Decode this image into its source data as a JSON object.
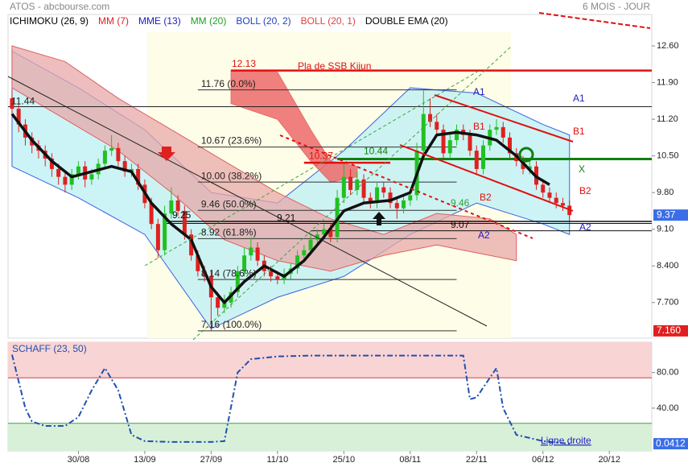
{
  "header": {
    "source": "ATOS - abcbourse.com",
    "period": "6 MOIS - JOUR"
  },
  "legend": [
    {
      "name": "ICHIMOKU (26, 9)",
      "color": "#000000"
    },
    {
      "name": "MM (7)",
      "color": "#e02020"
    },
    {
      "name": "MME (13)",
      "color": "#2020c0"
    },
    {
      "name": "MM (20)",
      "color": "#20a020"
    },
    {
      "name": "BOLL (20, 2)",
      "color": "#2040c0"
    },
    {
      "name": "BOLL (20, 1)",
      "color": "#e04040"
    },
    {
      "name": "DOUBLE EMA (20)",
      "color": "#000000"
    }
  ],
  "chart_data": [
    {
      "type": "candlestick",
      "xlim": [
        -0.6,
        96.4
      ],
      "ylim": [
        7.02,
        13.2
      ],
      "yticks": [
        {
          "value": 12.6,
          "label": "12.60"
        },
        {
          "value": 11.9,
          "label": "11.90"
        },
        {
          "value": 11.2,
          "label": "11.20"
        },
        {
          "value": 10.5,
          "label": "10.50"
        },
        {
          "value": 9.8,
          "label": "9.80"
        },
        {
          "value": 9.1,
          "label": "9.10"
        },
        {
          "value": 8.4,
          "label": "8.400"
        },
        {
          "value": 7.7,
          "label": "7.700"
        }
      ],
      "up_color": "#22c022",
      "down_color": "#e02020",
      "open": [
        11.6,
        11.4,
        11.1,
        10.85,
        10.7,
        10.6,
        10.45,
        10.25,
        10.1,
        9.95,
        10.15,
        10.3,
        10.05,
        10.15,
        10.35,
        10.6,
        10.65,
        10.4,
        10.2,
        10.25,
        9.95,
        9.6,
        9.2,
        8.7,
        9.4,
        9.65,
        9.45,
        9.0,
        8.6,
        8.3,
        8.2,
        7.8,
        7.6,
        7.7,
        7.9,
        8.3,
        8.6,
        8.75,
        8.5,
        8.3,
        8.2,
        8.15,
        8.25,
        8.35,
        8.6,
        8.7,
        8.9,
        9.0,
        9.1,
        8.95,
        9.7,
        10.1,
        9.85,
        10.05,
        9.7,
        9.6,
        9.9,
        9.8,
        9.6,
        9.5,
        9.65,
        9.75,
        10.6,
        11.3,
        11.15,
        11.0,
        10.55,
        10.8,
        11.0,
        10.9,
        10.6,
        10.25,
        10.7,
        11.0,
        11.05,
        10.85,
        10.55,
        10.4,
        10.25,
        10.3,
        9.95,
        9.8,
        9.7,
        9.6,
        9.55
      ],
      "high": [
        11.75,
        11.5,
        11.2,
        10.95,
        10.8,
        10.7,
        10.55,
        10.35,
        10.2,
        10.25,
        10.4,
        10.4,
        10.25,
        10.45,
        10.7,
        10.9,
        10.75,
        10.5,
        10.35,
        10.35,
        10.05,
        9.7,
        9.3,
        9.55,
        9.9,
        9.75,
        9.55,
        9.1,
        8.7,
        8.4,
        8.3,
        7.9,
        7.85,
        8.0,
        8.4,
        8.75,
        8.95,
        8.85,
        8.6,
        8.4,
        8.3,
        8.35,
        8.45,
        8.7,
        8.8,
        9.0,
        9.1,
        9.2,
        9.2,
        9.85,
        10.35,
        10.25,
        10.2,
        10.15,
        9.8,
        10.0,
        10.0,
        9.9,
        9.7,
        9.75,
        9.85,
        10.75,
        11.76,
        11.6,
        11.3,
        11.1,
        10.95,
        11.1,
        11.1,
        11.0,
        10.7,
        10.8,
        11.1,
        11.2,
        11.15,
        10.95,
        10.65,
        10.5,
        10.4,
        10.4,
        10.05,
        9.9,
        9.8,
        9.7,
        9.65
      ],
      "low": [
        11.25,
        10.95,
        10.7,
        10.55,
        10.45,
        10.3,
        10.1,
        9.95,
        9.8,
        9.85,
        10.05,
        9.9,
        9.95,
        10.05,
        10.25,
        10.5,
        10.3,
        10.1,
        10.1,
        9.85,
        9.5,
        9.1,
        8.55,
        8.6,
        9.3,
        9.35,
        8.9,
        8.5,
        8.2,
        8.1,
        7.16,
        7.45,
        7.5,
        7.6,
        7.8,
        8.2,
        8.5,
        8.4,
        8.2,
        8.1,
        8.05,
        8.05,
        8.15,
        8.25,
        8.5,
        8.6,
        8.8,
        8.9,
        8.85,
        8.85,
        9.6,
        9.75,
        9.75,
        9.6,
        9.5,
        9.5,
        9.7,
        9.5,
        9.3,
        9.4,
        9.55,
        9.65,
        10.5,
        11.05,
        10.9,
        10.45,
        10.45,
        10.7,
        10.8,
        10.5,
        10.15,
        10.15,
        10.6,
        10.9,
        10.75,
        10.45,
        10.3,
        10.15,
        10.15,
        9.85,
        9.7,
        9.6,
        9.5,
        9.45,
        9.27
      ],
      "close": [
        11.4,
        11.1,
        10.85,
        10.7,
        10.6,
        10.45,
        10.25,
        10.1,
        9.95,
        10.15,
        10.3,
        10.05,
        10.15,
        10.35,
        10.6,
        10.65,
        10.4,
        10.2,
        10.25,
        9.95,
        9.6,
        9.2,
        8.7,
        9.4,
        9.65,
        9.45,
        9.0,
        8.6,
        8.3,
        8.2,
        7.8,
        7.6,
        7.7,
        7.9,
        8.3,
        8.6,
        8.75,
        8.5,
        8.3,
        8.2,
        8.15,
        8.25,
        8.35,
        8.6,
        8.7,
        8.9,
        9.0,
        9.1,
        8.95,
        9.7,
        10.1,
        9.85,
        10.05,
        9.7,
        9.6,
        9.9,
        9.8,
        9.6,
        9.5,
        9.65,
        9.75,
        10.6,
        11.3,
        11.15,
        11.0,
        10.55,
        10.8,
        11.0,
        10.9,
        10.6,
        10.25,
        10.7,
        11.0,
        11.05,
        10.85,
        10.55,
        10.4,
        10.25,
        10.3,
        9.95,
        9.8,
        9.7,
        9.6,
        9.55,
        9.37
      ],
      "low_label": {
        "value": 7.16,
        "label": "7.160"
      },
      "bands": [
        {
          "color": "#bff0f4",
          "opacity": 0.8,
          "edge": "#4060e0",
          "x": [
            0,
            10,
            20,
            30,
            40,
            50,
            60,
            70,
            80,
            84
          ],
          "upper": [
            12.5,
            11.8,
            11.0,
            9.8,
            9.6,
            10.6,
            11.8,
            11.7,
            11.1,
            10.9
          ],
          "lower": [
            10.3,
            9.7,
            9.0,
            7.2,
            7.8,
            8.2,
            9.0,
            9.6,
            9.2,
            9.0
          ]
        },
        {
          "color": "#e8a8a8",
          "opacity": 0.75,
          "edge": "#e06060",
          "x": [
            0,
            8,
            16,
            24,
            32,
            40,
            48,
            56,
            64,
            72,
            76
          ],
          "upper": [
            12.6,
            12.3,
            11.6,
            11.0,
            10.4,
            9.8,
            9.3,
            9.0,
            9.4,
            9.3,
            9.0
          ],
          "lower": [
            11.8,
            11.2,
            10.6,
            9.8,
            8.9,
            8.5,
            8.3,
            8.6,
            8.8,
            8.6,
            8.5
          ]
        },
        {
          "color": "#ec6a6a",
          "opacity": 0.85,
          "edge": "#ec6a6a",
          "x": [
            33,
            40,
            45,
            48,
            52
          ],
          "upper": [
            12.13,
            12.1,
            11.0,
            10.4,
            10.3
          ],
          "lower": [
            11.5,
            11.2,
            10.4,
            10.0,
            10.1
          ]
        }
      ],
      "lines": [
        {
          "color": "#111111",
          "width": 3.5,
          "x": [
            0,
            3,
            6,
            9,
            12,
            15,
            18,
            21,
            24,
            27,
            30,
            32,
            35,
            38,
            41,
            44,
            47,
            50,
            53,
            57,
            60,
            62,
            64,
            67,
            70,
            73,
            76,
            79,
            81
          ],
          "values": [
            11.3,
            10.8,
            10.4,
            10.1,
            10.2,
            10.3,
            10.2,
            9.6,
            9.2,
            8.9,
            8.0,
            7.7,
            8.1,
            8.4,
            8.2,
            8.5,
            8.95,
            9.45,
            9.6,
            9.65,
            9.8,
            10.5,
            10.9,
            10.95,
            10.9,
            10.8,
            10.5,
            10.1,
            9.95
          ]
        }
      ],
      "hlines": [
        {
          "value": 12.13,
          "label": "12.13",
          "color": "#e01010",
          "width": 2.5,
          "x": [
            33,
            96.4
          ]
        },
        {
          "value": 11.44,
          "label": "11.44",
          "color": "#222222",
          "width": 1,
          "x": [
            -0.6,
            96.4
          ]
        },
        {
          "value": 10.44,
          "label": "10.44",
          "color": "#108010",
          "width": 3,
          "x": [
            49,
            96.4
          ]
        },
        {
          "value": 10.37,
          "label": "10.37",
          "color": "#e01010",
          "width": 2.5,
          "x": [
            44,
            57
          ]
        },
        {
          "value": 9.25,
          "label": "9.25",
          "color": "#111111",
          "width": 1.5,
          "x": [
            23,
            96.4
          ]
        },
        {
          "value": 9.21,
          "label": "9.21",
          "color": "#111111",
          "width": 1,
          "x": [
            23,
            96.4
          ]
        },
        {
          "value": 9.07,
          "label": "9.07",
          "color": "#111111",
          "width": 1,
          "x": [
            45,
            96.4
          ]
        }
      ],
      "levels": [
        {
          "value": 11.76,
          "label": "11.76  (0.0%)"
        },
        {
          "value": 10.67,
          "label": "10.67  (23.6%)"
        },
        {
          "value": 10.0,
          "label": "10.00  (38.2%)"
        },
        {
          "value": 9.46,
          "label": "9.46  (50.0%)"
        },
        {
          "value": 8.92,
          "label": "8.92  (61.8%)"
        },
        {
          "value": 8.14,
          "label": "8.14  (78.6%)"
        },
        {
          "value": 7.16,
          "label": "7.16  (100.0%)"
        }
      ],
      "levels_x": [
        28,
        67
      ],
      "annotations": [
        "Pla de SSB Kijun",
        "A1",
        "A1",
        "B1",
        "B1",
        "X",
        "B2",
        "B2",
        "A2",
        "A2",
        "9.46"
      ]
    },
    {
      "type": "line",
      "title": "SCHAFF (23, 50)",
      "xlim": [
        -0.6,
        96.4
      ],
      "ylim": [
        -8,
        114
      ],
      "xticks": [
        {
          "value": 10,
          "label": "30/08"
        },
        {
          "value": 20,
          "label": "13/09"
        },
        {
          "value": 30,
          "label": "27/09"
        },
        {
          "value": 40,
          "label": "11/10"
        },
        {
          "value": 50,
          "label": "25/10"
        },
        {
          "value": 60,
          "label": "08/11"
        },
        {
          "value": 70,
          "label": "22/11"
        },
        {
          "value": 80,
          "label": "06/12"
        },
        {
          "value": 90,
          "label": "20/12"
        }
      ],
      "yticks": [
        {
          "value": 80,
          "label": "80.00"
        },
        {
          "value": 40,
          "label": "40.00"
        }
      ],
      "zones": [
        {
          "from": 74,
          "to": 114,
          "color": "#f8d4d4",
          "edge": "#d04040"
        },
        {
          "from": -8,
          "to": 23,
          "color": "#d8f0d8",
          "edge": "#40a040"
        }
      ],
      "color": "#2050b0",
      "x": [
        0,
        1,
        2,
        3,
        5,
        8,
        10,
        12,
        14,
        16,
        18,
        20,
        24,
        30,
        32,
        34,
        36,
        40,
        45,
        55,
        65,
        68,
        69,
        70,
        73,
        74,
        76,
        80,
        84
      ],
      "values": [
        100,
        70,
        40,
        25,
        20,
        20,
        30,
        60,
        85,
        60,
        10,
        3,
        2,
        2,
        3,
        80,
        95,
        98,
        99,
        99,
        99,
        99,
        50,
        52,
        85,
        40,
        10,
        3,
        0.0412
      ],
      "annotation": "Ligne droite"
    }
  ]
}
